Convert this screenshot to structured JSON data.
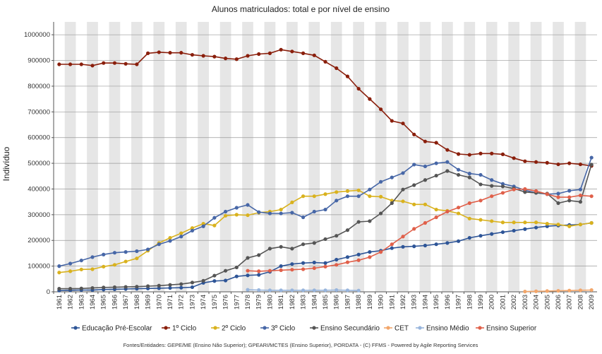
{
  "chart_data": {
    "type": "line",
    "title": "Alunos matriculados: total e por nível de ensino",
    "ylabel": "Indivíduo",
    "xlabel": "",
    "ylim": [
      0,
      1050000
    ],
    "yticks": [
      0,
      100000,
      200000,
      300000,
      400000,
      500000,
      600000,
      700000,
      800000,
      900000,
      1000000
    ],
    "ytick_labels": [
      "0",
      "100000",
      "200000",
      "300000",
      "400000",
      "500000",
      "600000",
      "700000",
      "800000",
      "900000",
      "1000000"
    ],
    "x": [
      "1961",
      "1962",
      "1963",
      "1964",
      "1965",
      "1966",
      "1967",
      "1968",
      "1969",
      "1970",
      "1971",
      "1972",
      "1973",
      "1974",
      "1975",
      "1976",
      "1977",
      "1978",
      "1979",
      "1980",
      "1981",
      "1982",
      "1983",
      "1984",
      "1985",
      "1986",
      "1987",
      "1988",
      "1989",
      "1990",
      "1991",
      "1992",
      "1993",
      "1994",
      "1995",
      "1996",
      "1997",
      "1998",
      "1999",
      "2000",
      "2001",
      "2002",
      "2003",
      "2004",
      "2005",
      "2006",
      "2007",
      "2008",
      "2009"
    ],
    "grid": true,
    "legend_position": "bottom",
    "series": [
      {
        "name": "Educação Pré-Escolar",
        "color": "#2e5597",
        "values": [
          5000,
          6000,
          7000,
          7000,
          9000,
          10000,
          11000,
          12000,
          13000,
          14000,
          15000,
          16000,
          18000,
          35000,
          42000,
          44000,
          60000,
          64000,
          66000,
          78000,
          100000,
          108000,
          112000,
          114000,
          112000,
          125000,
          135000,
          145000,
          155000,
          160000,
          170000,
          175000,
          177000,
          180000,
          185000,
          190000,
          197000,
          210000,
          218000,
          225000,
          232000,
          238000,
          244000,
          250000,
          255000,
          258000,
          260000,
          262000,
          268000
        ]
      },
      {
        "name": "1º Ciclo",
        "color": "#8a1f0c",
        "values": [
          885000,
          885000,
          885000,
          880000,
          890000,
          890000,
          887000,
          885000,
          928000,
          932000,
          930000,
          930000,
          922000,
          918000,
          915000,
          908000,
          905000,
          918000,
          925000,
          928000,
          942000,
          935000,
          928000,
          920000,
          895000,
          870000,
          838000,
          790000,
          750000,
          710000,
          665000,
          655000,
          612000,
          585000,
          580000,
          552000,
          536000,
          533000,
          538000,
          538000,
          535000,
          520000,
          508000,
          505000,
          502000,
          496000,
          500000,
          496000,
          490000
        ]
      },
      {
        "name": "2º Ciclo",
        "color": "#d9b21e",
        "values": [
          75000,
          80000,
          87000,
          88000,
          98000,
          105000,
          118000,
          130000,
          160000,
          190000,
          210000,
          228000,
          248000,
          265000,
          258000,
          296000,
          300000,
          298000,
          308000,
          312000,
          320000,
          348000,
          372000,
          372000,
          380000,
          388000,
          392000,
          395000,
          372000,
          370000,
          355000,
          352000,
          340000,
          340000,
          320000,
          315000,
          305000,
          285000,
          280000,
          275000,
          270000,
          270000,
          270000,
          270000,
          265000,
          262000,
          255000,
          262000,
          268000
        ]
      },
      {
        "name": "3º Ciclo",
        "color": "#4767a7",
        "values": [
          100000,
          110000,
          122000,
          135000,
          145000,
          152000,
          155000,
          158000,
          165000,
          185000,
          198000,
          215000,
          238000,
          255000,
          288000,
          312000,
          327000,
          338000,
          310000,
          305000,
          305000,
          308000,
          290000,
          312000,
          320000,
          355000,
          372000,
          372000,
          398000,
          428000,
          445000,
          462000,
          495000,
          488000,
          500000,
          505000,
          475000,
          460000,
          455000,
          435000,
          420000,
          410000,
          395000,
          385000,
          380000,
          382000,
          393000,
          398000,
          522000
        ]
      },
      {
        "name": "Ensino Secundário",
        "color": "#555555",
        "values": [
          12000,
          12000,
          13000,
          15000,
          17000,
          18000,
          19000,
          20000,
          22000,
          24000,
          27000,
          30000,
          36000,
          43000,
          63000,
          82000,
          95000,
          132000,
          143000,
          168000,
          175000,
          168000,
          185000,
          190000,
          205000,
          218000,
          240000,
          272000,
          275000,
          305000,
          345000,
          398000,
          415000,
          435000,
          452000,
          470000,
          455000,
          445000,
          418000,
          412000,
          410000,
          402000,
          388000,
          385000,
          382000,
          345000,
          355000,
          350000,
          495000
        ]
      },
      {
        "name": "CET",
        "color": "#f2a66b",
        "values": [
          null,
          null,
          null,
          null,
          null,
          null,
          null,
          null,
          null,
          null,
          null,
          null,
          null,
          null,
          null,
          null,
          null,
          null,
          null,
          null,
          null,
          null,
          null,
          null,
          null,
          null,
          null,
          null,
          null,
          null,
          null,
          null,
          null,
          null,
          null,
          null,
          null,
          null,
          null,
          null,
          null,
          null,
          1000,
          2000,
          3000,
          4000,
          5000,
          6000,
          7000
        ]
      },
      {
        "name": "Ensino Médio",
        "color": "#98b5dc",
        "values": [
          null,
          null,
          null,
          null,
          null,
          null,
          null,
          null,
          null,
          null,
          null,
          null,
          null,
          null,
          null,
          null,
          null,
          8000,
          7000,
          6000,
          6000,
          6000,
          6000,
          6000,
          6000,
          7000,
          6000,
          5000,
          null,
          null,
          null,
          null,
          null,
          null,
          null,
          null,
          null,
          null,
          null,
          null,
          null,
          null,
          null,
          null,
          null,
          null,
          null,
          null,
          null
        ]
      },
      {
        "name": "Ensino Superior",
        "color": "#e0604a",
        "values": [
          null,
          null,
          null,
          null,
          null,
          null,
          null,
          null,
          null,
          null,
          null,
          null,
          null,
          null,
          null,
          null,
          null,
          82000,
          80000,
          82000,
          84000,
          86000,
          88000,
          92000,
          98000,
          105000,
          115000,
          123000,
          135000,
          155000,
          185000,
          215000,
          245000,
          268000,
          290000,
          312000,
          328000,
          345000,
          355000,
          372000,
          385000,
          398000,
          400000,
          392000,
          380000,
          368000,
          368000,
          375000,
          372000
        ]
      }
    ],
    "source_note": "Fontes/Entidades: GEPE/ME (Ensino Não Superior); GPEARI/MCTES (Ensino Superior), PORDATA - (C) FFMS - Powered by Agile Reporting Services"
  }
}
